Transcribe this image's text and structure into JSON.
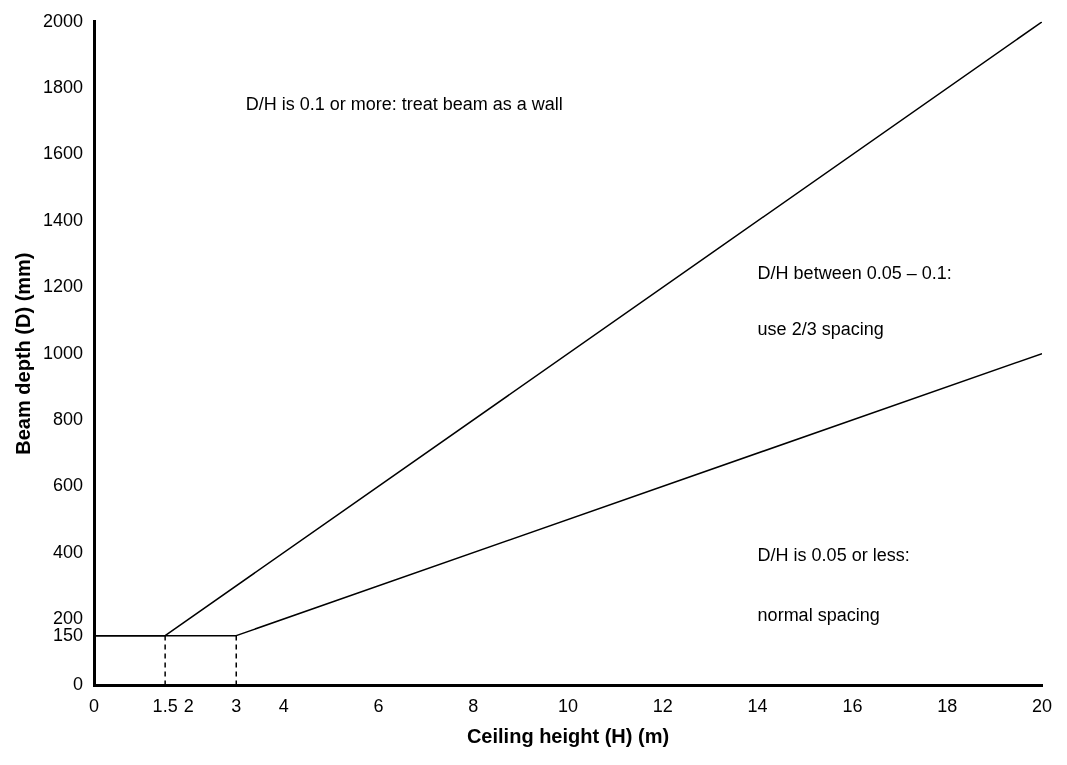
{
  "chart_data": {
    "type": "line",
    "xlabel": "Ceiling height (H) (m)",
    "ylabel": "Beam depth (D) (mm)",
    "xlim": [
      0,
      20
    ],
    "xticks": [
      0,
      1.5,
      2,
      3,
      4,
      6,
      8,
      10,
      12,
      14,
      16,
      18,
      20
    ],
    "ylim": [
      0,
      2000
    ],
    "yticks": [
      0,
      150,
      200,
      400,
      600,
      800,
      1000,
      1200,
      1400,
      1600,
      1800,
      2000
    ],
    "series": [
      {
        "color": "#000000",
        "x": [
          0,
          1.5,
          20
        ],
        "values": [
          150,
          150,
          2000
        ]
      },
      {
        "color": "#000000",
        "x": [
          0,
          3,
          20
        ],
        "values": [
          150,
          150,
          1000
        ]
      },
      {
        "color": "#000000",
        "x": [
          1.5,
          1.5
        ],
        "values": [
          0,
          150
        ],
        "line_style": "dashed"
      },
      {
        "color": "#000000",
        "x": [
          3,
          3
        ],
        "values": [
          0,
          150
        ],
        "line_style": "dashed"
      }
    ],
    "annotations": [
      "D/H is 0.1 or more: treat beam as a wall",
      "D/H between 0.05 – 0.1:",
      "use 2/3 spacing",
      "D/H is 0.05 or less:",
      "normal spacing"
    ],
    "grid": false,
    "legend": false,
    "marker": "none",
    "line_style": "solid"
  }
}
